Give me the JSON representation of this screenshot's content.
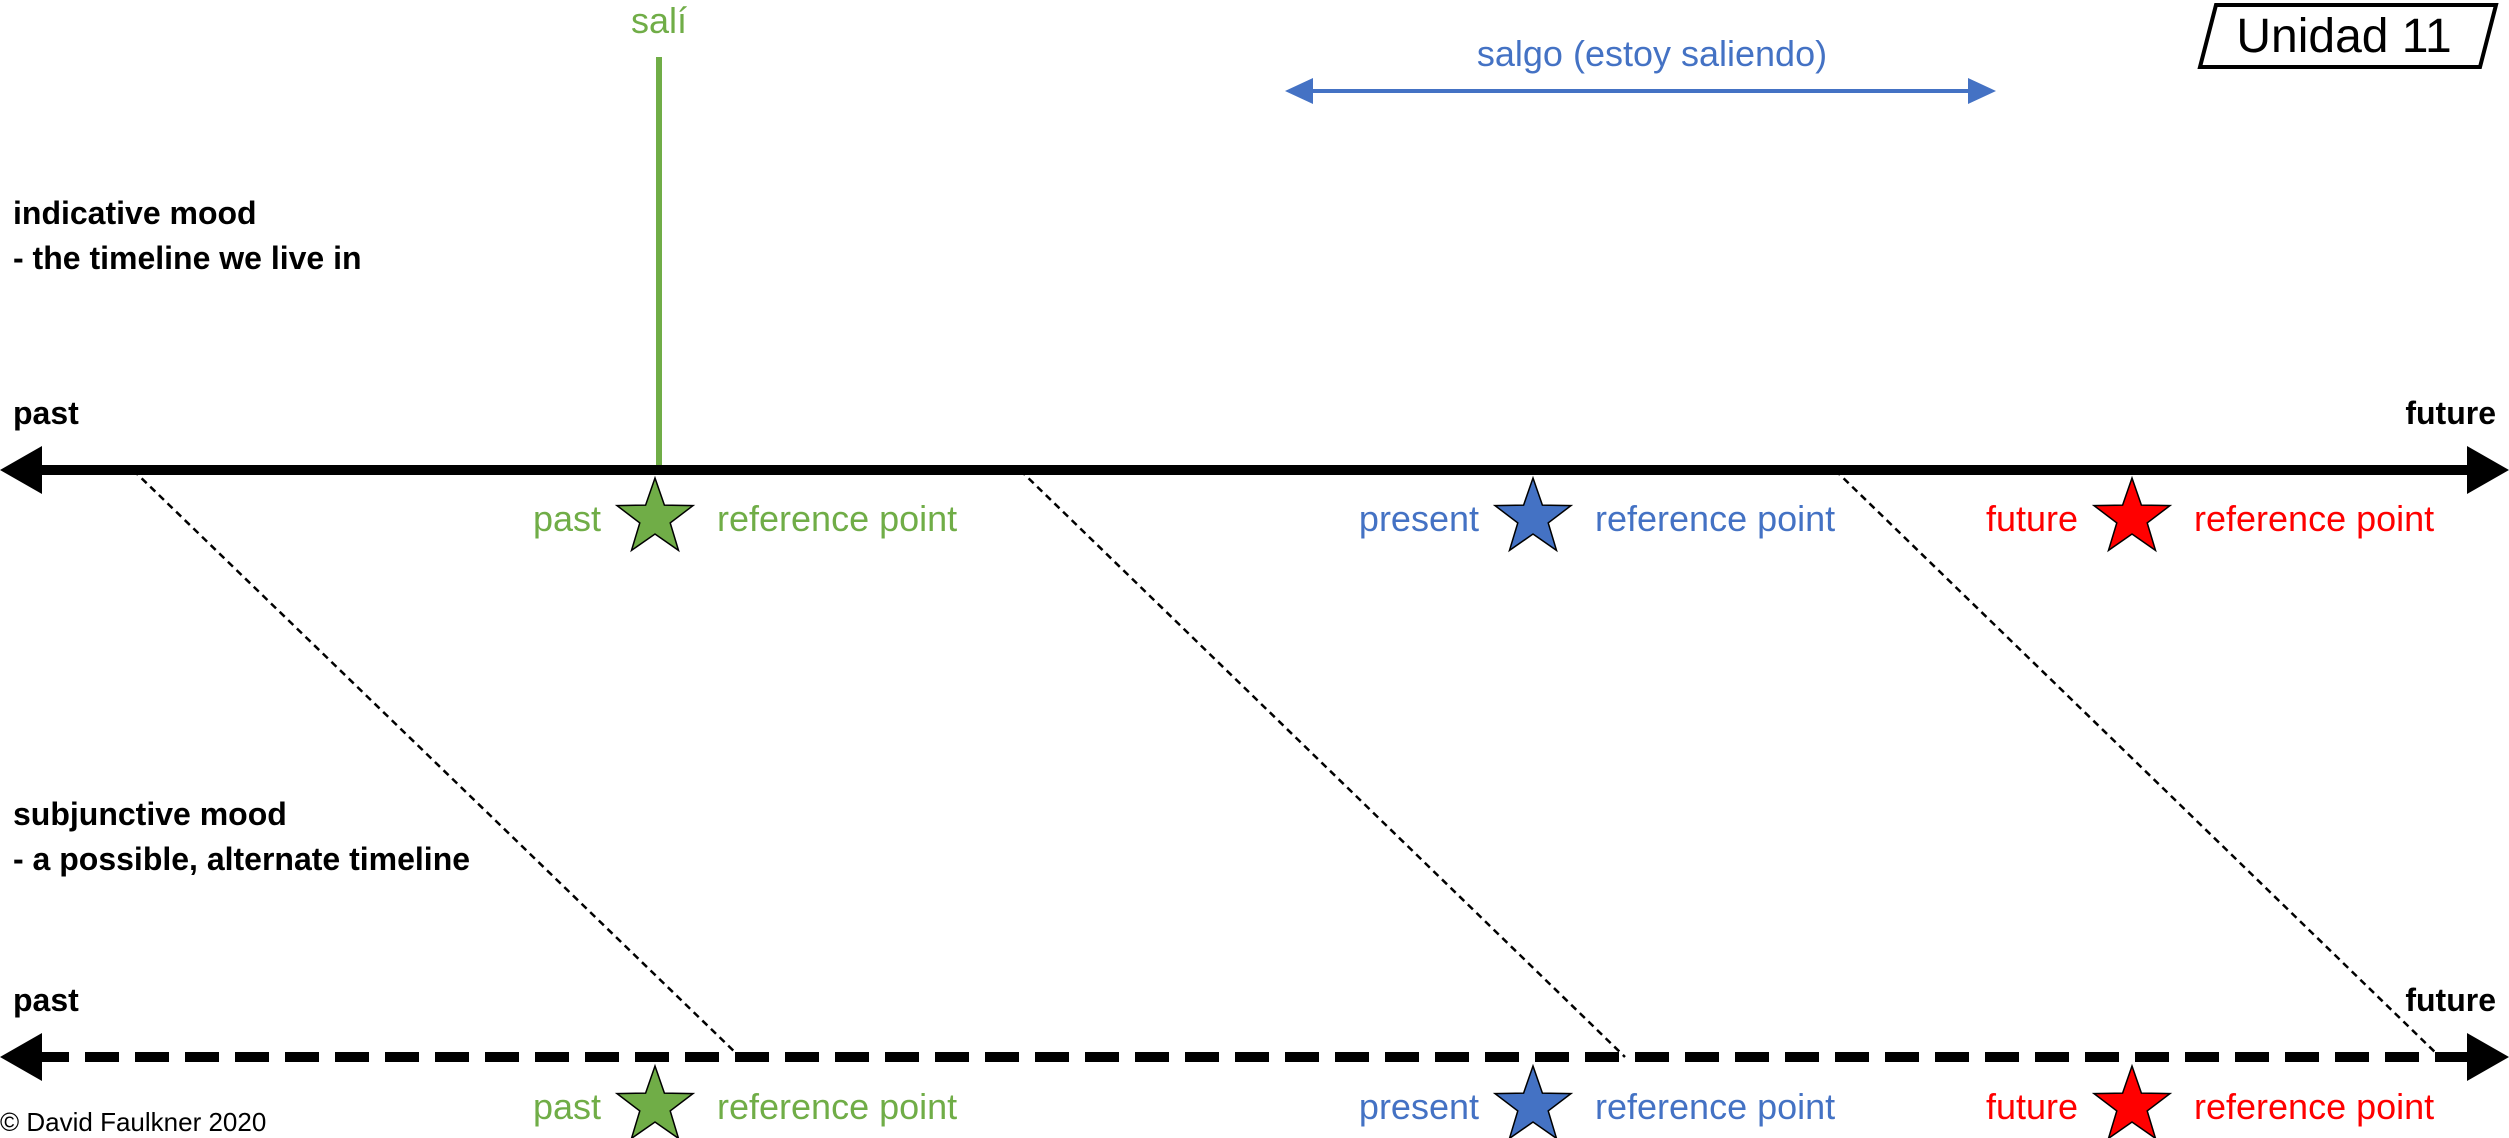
{
  "unit_box": {
    "label": "Unidad 11"
  },
  "indicative": {
    "title": "indicative mood",
    "subtitle": "- the timeline we live in",
    "past_label": "past",
    "future_label": "future"
  },
  "subjunctive": {
    "title": "subjunctive mood",
    "subtitle": "- a possible, alternate timeline",
    "past_label": "past",
    "future_label": "future"
  },
  "events": {
    "sali": {
      "label": "salí",
      "color": "#70AD47"
    },
    "salgo": {
      "label": "salgo (estoy saliendo)",
      "color": "#4472C4"
    }
  },
  "reference_points": {
    "top": [
      {
        "tense": "past",
        "label": "reference point",
        "color": "#70AD47"
      },
      {
        "tense": "present",
        "label": "reference point",
        "color": "#4472C4"
      },
      {
        "tense": "future",
        "label": "reference point",
        "color": "#FF0000"
      }
    ],
    "bottom": [
      {
        "tense": "past",
        "label": "reference point",
        "color": "#70AD47"
      },
      {
        "tense": "present",
        "label": "reference point",
        "color": "#4472C4"
      },
      {
        "tense": "future",
        "label": "reference point",
        "color": "#FF0000"
      }
    ]
  },
  "copyright": "© David Faulkner 2020"
}
